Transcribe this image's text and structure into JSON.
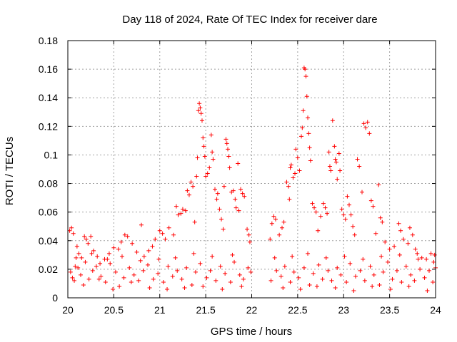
{
  "chart_data": {
    "type": "scatter",
    "title": "Day 118 of 2024, Rate Of TEC Index for receiver dare",
    "xlabel": "GPS time / hours",
    "ylabel": "ROTI / TECUs",
    "xlim": [
      20,
      24
    ],
    "ylim": [
      0,
      0.18
    ],
    "grid": true,
    "marker": "+",
    "color": "#ff0000",
    "xticks": [
      {
        "value": 20,
        "label": "20"
      },
      {
        "value": 20.5,
        "label": "20.5"
      },
      {
        "value": 21,
        "label": "21"
      },
      {
        "value": 21.5,
        "label": "21.5"
      },
      {
        "value": 22,
        "label": "22"
      },
      {
        "value": 22.5,
        "label": "22.5"
      },
      {
        "value": 23,
        "label": "23"
      },
      {
        "value": 23.5,
        "label": "23.5"
      },
      {
        "value": 24,
        "label": "24"
      }
    ],
    "yticks": [
      {
        "value": 0,
        "label": "0"
      },
      {
        "value": 0.02,
        "label": "0.02"
      },
      {
        "value": 0.04,
        "label": "0.04"
      },
      {
        "value": 0.06,
        "label": "0.06"
      },
      {
        "value": 0.08,
        "label": "0.08"
      },
      {
        "value": 0.1,
        "label": "0.1"
      },
      {
        "value": 0.12,
        "label": "0.12"
      },
      {
        "value": 0.14,
        "label": "0.14"
      },
      {
        "value": 0.16,
        "label": "0.16"
      },
      {
        "value": 0.18,
        "label": "0.18"
      }
    ],
    "points": [
      [
        20.02,
        0.047
      ],
      [
        20.04,
        0.049
      ],
      [
        20.06,
        0.045
      ],
      [
        20.05,
        0.014
      ],
      [
        20.08,
        0.022
      ],
      [
        20.1,
        0.036
      ],
      [
        20.12,
        0.031
      ],
      [
        20.15,
        0.028
      ],
      [
        20.18,
        0.043
      ],
      [
        20.2,
        0.041
      ],
      [
        20.22,
        0.038
      ],
      [
        20.25,
        0.043
      ],
      [
        20.28,
        0.033
      ],
      [
        20.32,
        0.029
      ],
      [
        20.35,
        0.024
      ],
      [
        20.4,
        0.027
      ],
      [
        20.45,
        0.031
      ],
      [
        20.5,
        0.035
      ],
      [
        20.55,
        0.034
      ],
      [
        20.58,
        0.039
      ],
      [
        20.62,
        0.044
      ],
      [
        20.65,
        0.043
      ],
      [
        20.7,
        0.038
      ],
      [
        20.75,
        0.032
      ],
      [
        20.8,
        0.051
      ],
      [
        20.83,
        0.029
      ],
      [
        20.88,
        0.033
      ],
      [
        20.92,
        0.036
      ],
      [
        20.95,
        0.041
      ],
      [
        21.0,
        0.047
      ],
      [
        21.03,
        0.045
      ],
      [
        21.06,
        0.041
      ],
      [
        21.1,
        0.049
      ],
      [
        21.15,
        0.044
      ],
      [
        21.18,
        0.064
      ],
      [
        21.2,
        0.058
      ],
      [
        21.23,
        0.059
      ],
      [
        21.25,
        0.062
      ],
      [
        21.28,
        0.061
      ],
      [
        21.3,
        0.075
      ],
      [
        21.32,
        0.072
      ],
      [
        21.34,
        0.081
      ],
      [
        21.36,
        0.078
      ],
      [
        21.38,
        0.053
      ],
      [
        21.4,
        0.085
      ],
      [
        21.41,
        0.098
      ],
      [
        21.42,
        0.131
      ],
      [
        21.43,
        0.136
      ],
      [
        21.44,
        0.133
      ],
      [
        21.45,
        0.129
      ],
      [
        21.46,
        0.124
      ],
      [
        21.47,
        0.112
      ],
      [
        21.48,
        0.106
      ],
      [
        21.49,
        0.099
      ],
      [
        21.5,
        0.085
      ],
      [
        21.52,
        0.087
      ],
      [
        21.54,
        0.091
      ],
      [
        21.56,
        0.114
      ],
      [
        21.57,
        0.102
      ],
      [
        21.58,
        0.097
      ],
      [
        21.6,
        0.076
      ],
      [
        21.62,
        0.069
      ],
      [
        21.63,
        0.073
      ],
      [
        21.65,
        0.062
      ],
      [
        21.67,
        0.055
      ],
      [
        21.69,
        0.048
      ],
      [
        21.7,
        0.078
      ],
      [
        21.72,
        0.111
      ],
      [
        21.73,
        0.108
      ],
      [
        21.74,
        0.104
      ],
      [
        21.75,
        0.099
      ],
      [
        21.76,
        0.091
      ],
      [
        21.78,
        0.074
      ],
      [
        21.8,
        0.075
      ],
      [
        21.82,
        0.069
      ],
      [
        21.83,
        0.063
      ],
      [
        21.85,
        0.094
      ],
      [
        21.86,
        0.061
      ],
      [
        21.88,
        0.076
      ],
      [
        21.9,
        0.073
      ],
      [
        21.92,
        0.071
      ],
      [
        21.95,
        0.048
      ],
      [
        21.97,
        0.044
      ],
      [
        21.98,
        0.039
      ],
      [
        22.2,
        0.041
      ],
      [
        22.22,
        0.052
      ],
      [
        22.24,
        0.057
      ],
      [
        22.26,
        0.055
      ],
      [
        22.3,
        0.044
      ],
      [
        22.33,
        0.049
      ],
      [
        22.35,
        0.053
      ],
      [
        22.38,
        0.081
      ],
      [
        22.4,
        0.078
      ],
      [
        22.41,
        0.069
      ],
      [
        22.42,
        0.091
      ],
      [
        22.43,
        0.093
      ],
      [
        22.45,
        0.084
      ],
      [
        22.47,
        0.087
      ],
      [
        22.48,
        0.104
      ],
      [
        22.5,
        0.098
      ],
      [
        22.52,
        0.089
      ],
      [
        22.54,
        0.113
      ],
      [
        22.55,
        0.119
      ],
      [
        22.56,
        0.131
      ],
      [
        22.57,
        0.161
      ],
      [
        22.58,
        0.16
      ],
      [
        22.59,
        0.155
      ],
      [
        22.6,
        0.141
      ],
      [
        22.61,
        0.126
      ],
      [
        22.62,
        0.115
      ],
      [
        22.63,
        0.105
      ],
      [
        22.64,
        0.096
      ],
      [
        22.66,
        0.066
      ],
      [
        22.68,
        0.063
      ],
      [
        22.7,
        0.06
      ],
      [
        22.72,
        0.047
      ],
      [
        22.75,
        0.057
      ],
      [
        22.78,
        0.066
      ],
      [
        22.8,
        0.063
      ],
      [
        22.82,
        0.059
      ],
      [
        22.84,
        0.102
      ],
      [
        22.85,
        0.092
      ],
      [
        22.86,
        0.089
      ],
      [
        22.88,
        0.124
      ],
      [
        22.9,
        0.106
      ],
      [
        22.91,
        0.097
      ],
      [
        22.92,
        0.095
      ],
      [
        22.93,
        0.083
      ],
      [
        22.95,
        0.101
      ],
      [
        22.96,
        0.089
      ],
      [
        22.98,
        0.062
      ],
      [
        23.0,
        0.058
      ],
      [
        23.02,
        0.055
      ],
      [
        23.04,
        0.071
      ],
      [
        23.06,
        0.065
      ],
      [
        23.08,
        0.058
      ],
      [
        23.1,
        0.05
      ],
      [
        23.12,
        0.044
      ],
      [
        23.15,
        0.097
      ],
      [
        23.17,
        0.092
      ],
      [
        23.2,
        0.074
      ],
      [
        23.22,
        0.122
      ],
      [
        23.24,
        0.119
      ],
      [
        23.26,
        0.123
      ],
      [
        23.28,
        0.115
      ],
      [
        23.3,
        0.068
      ],
      [
        23.32,
        0.064
      ],
      [
        23.35,
        0.045
      ],
      [
        23.38,
        0.079
      ],
      [
        23.4,
        0.056
      ],
      [
        23.42,
        0.053
      ],
      [
        23.45,
        0.039
      ],
      [
        23.5,
        0.034
      ],
      [
        23.55,
        0.036
      ],
      [
        23.6,
        0.052
      ],
      [
        23.62,
        0.047
      ],
      [
        23.65,
        0.041
      ],
      [
        23.7,
        0.038
      ],
      [
        23.72,
        0.049
      ],
      [
        23.75,
        0.044
      ],
      [
        23.78,
        0.034
      ],
      [
        23.8,
        0.031
      ],
      [
        23.85,
        0.028
      ],
      [
        23.9,
        0.027
      ],
      [
        23.95,
        0.031
      ],
      [
        23.98,
        0.025
      ],
      [
        24.0,
        0.021
      ],
      [
        20.03,
        0.018
      ],
      [
        20.07,
        0.012
      ],
      [
        20.11,
        0.021
      ],
      [
        20.14,
        0.016
      ],
      [
        20.19,
        0.025
      ],
      [
        20.23,
        0.013
      ],
      [
        20.27,
        0.019
      ],
      [
        20.31,
        0.022
      ],
      [
        20.36,
        0.015
      ],
      [
        20.41,
        0.011
      ],
      [
        20.46,
        0.024
      ],
      [
        20.52,
        0.018
      ],
      [
        20.56,
        0.008
      ],
      [
        20.61,
        0.014
      ],
      [
        20.67,
        0.021
      ],
      [
        20.72,
        0.016
      ],
      [
        20.77,
        0.012
      ],
      [
        20.82,
        0.019
      ],
      [
        20.87,
        0.023
      ],
      [
        20.93,
        0.013
      ],
      [
        20.98,
        0.017
      ],
      [
        21.04,
        0.011
      ],
      [
        21.09,
        0.022
      ],
      [
        21.14,
        0.015
      ],
      [
        21.19,
        0.019
      ],
      [
        21.24,
        0.013
      ],
      [
        21.29,
        0.021
      ],
      [
        21.35,
        0.009
      ],
      [
        21.39,
        0.018
      ],
      [
        21.44,
        0.024
      ],
      [
        21.51,
        0.014
      ],
      [
        21.55,
        0.019
      ],
      [
        21.61,
        0.012
      ],
      [
        21.66,
        0.022
      ],
      [
        21.71,
        0.017
      ],
      [
        21.77,
        0.011
      ],
      [
        21.81,
        0.025
      ],
      [
        21.87,
        0.016
      ],
      [
        21.91,
        0.013
      ],
      [
        21.96,
        0.021
      ],
      [
        21.99,
        0.018
      ],
      [
        22.21,
        0.012
      ],
      [
        22.27,
        0.019
      ],
      [
        22.32,
        0.015
      ],
      [
        22.36,
        0.022
      ],
      [
        22.42,
        0.011
      ],
      [
        22.46,
        0.018
      ],
      [
        22.51,
        0.014
      ],
      [
        22.57,
        0.021
      ],
      [
        22.63,
        0.009
      ],
      [
        22.67,
        0.017
      ],
      [
        22.73,
        0.023
      ],
      [
        22.77,
        0.013
      ],
      [
        22.83,
        0.019
      ],
      [
        22.87,
        0.012
      ],
      [
        22.93,
        0.021
      ],
      [
        22.97,
        0.016
      ],
      [
        23.03,
        0.011
      ],
      [
        23.07,
        0.024
      ],
      [
        23.13,
        0.015
      ],
      [
        23.18,
        0.019
      ],
      [
        23.23,
        0.012
      ],
      [
        23.29,
        0.022
      ],
      [
        23.33,
        0.016
      ],
      [
        23.39,
        0.009
      ],
      [
        23.43,
        0.018
      ],
      [
        23.48,
        0.025
      ],
      [
        23.53,
        0.013
      ],
      [
        23.58,
        0.019
      ],
      [
        23.63,
        0.011
      ],
      [
        23.68,
        0.022
      ],
      [
        23.73,
        0.016
      ],
      [
        23.77,
        0.012
      ],
      [
        23.83,
        0.02
      ],
      [
        23.88,
        0.014
      ],
      [
        23.93,
        0.019
      ],
      [
        23.97,
        0.011
      ],
      [
        20.09,
        0.028
      ],
      [
        20.17,
        0.009
      ],
      [
        20.26,
        0.031
      ],
      [
        20.34,
        0.013
      ],
      [
        20.43,
        0.027
      ],
      [
        20.49,
        0.006
      ],
      [
        20.59,
        0.029
      ],
      [
        20.69,
        0.011
      ],
      [
        20.79,
        0.026
      ],
      [
        20.89,
        0.007
      ],
      [
        20.99,
        0.027
      ],
      [
        21.08,
        0.006
      ],
      [
        21.17,
        0.028
      ],
      [
        21.27,
        0.007
      ],
      [
        21.37,
        0.031
      ],
      [
        21.47,
        0.008
      ],
      [
        21.57,
        0.029
      ],
      [
        21.68,
        0.006
      ],
      [
        21.79,
        0.03
      ],
      [
        21.89,
        0.008
      ],
      [
        22.25,
        0.028
      ],
      [
        22.34,
        0.007
      ],
      [
        22.44,
        0.029
      ],
      [
        22.53,
        0.006
      ],
      [
        22.61,
        0.031
      ],
      [
        22.71,
        0.008
      ],
      [
        22.81,
        0.028
      ],
      [
        22.91,
        0.007
      ],
      [
        23.01,
        0.029
      ],
      [
        23.11,
        0.005
      ],
      [
        23.21,
        0.027
      ],
      [
        23.31,
        0.008
      ],
      [
        23.41,
        0.029
      ],
      [
        23.51,
        0.006
      ],
      [
        23.61,
        0.03
      ],
      [
        23.71,
        0.008
      ],
      [
        23.81,
        0.027
      ],
      [
        23.91,
        0.005
      ],
      [
        23.99,
        0.03
      ]
    ]
  }
}
